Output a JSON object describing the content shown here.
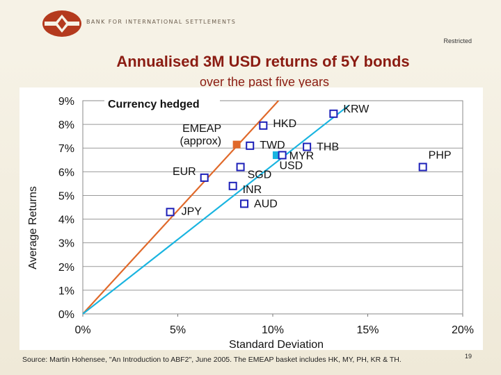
{
  "header": {
    "org_name": "BANK FOR INTERNATIONAL SETTLEMENTS",
    "restricted": "Restricted",
    "title": "Annualised 3M USD returns of 5Y bonds",
    "subtitle": "over the past five years"
  },
  "footer": {
    "source": "Source: Martin Hohensee, \"An Introduction to ABF2\", June 2005. The EMEAP basket includes HK, MY, PH, KR & TH.",
    "page_number": "19"
  },
  "colors": {
    "orange": "#e0692a",
    "cyan": "#19b4e0",
    "marker": "#1c1fb8",
    "title": "#8b1c12"
  },
  "chart_data": {
    "type": "scatter",
    "title": "Currency hedged",
    "xlabel": "Standard Deviation",
    "ylabel": "Average Returns",
    "xlim": [
      0,
      20
    ],
    "ylim": [
      0,
      9
    ],
    "xticks": [
      "0%",
      "5%",
      "10%",
      "15%",
      "20%"
    ],
    "yticks": [
      "0%",
      "1%",
      "2%",
      "3%",
      "4%",
      "5%",
      "6%",
      "7%",
      "8%",
      "9%"
    ],
    "grid": true,
    "lines": [
      {
        "name": "EMEAP line",
        "color": "#e0692a",
        "x": [
          0,
          10.3
        ],
        "y": [
          0,
          9
        ]
      },
      {
        "name": "USD line",
        "color": "#19b4e0",
        "x": [
          0,
          14.0
        ],
        "y": [
          0,
          8.8
        ]
      }
    ],
    "points": [
      {
        "label": "KRW",
        "x": 13.2,
        "y": 8.45,
        "style": "hollow"
      },
      {
        "label": "HKD",
        "x": 9.5,
        "y": 7.95,
        "style": "hollow"
      },
      {
        "label": "EMEAP\n(approx)",
        "x": 8.1,
        "y": 7.15,
        "style": "orange"
      },
      {
        "label": "TWD",
        "x": 8.8,
        "y": 7.1,
        "style": "hollow"
      },
      {
        "label": "THB",
        "x": 11.8,
        "y": 7.05,
        "style": "hollow"
      },
      {
        "label": "USD",
        "x": 10.2,
        "y": 6.7,
        "style": "cyan"
      },
      {
        "label": "MYR",
        "x": 10.5,
        "y": 6.7,
        "style": "hollow"
      },
      {
        "label": "PHP",
        "x": 17.9,
        "y": 6.2,
        "style": "hollow"
      },
      {
        "label": "SGD",
        "x": 8.3,
        "y": 6.2,
        "style": "hollow"
      },
      {
        "label": "EUR",
        "x": 6.4,
        "y": 5.75,
        "style": "hollow"
      },
      {
        "label": "INR",
        "x": 7.9,
        "y": 5.4,
        "style": "hollow"
      },
      {
        "label": "AUD",
        "x": 8.5,
        "y": 4.65,
        "style": "hollow"
      },
      {
        "label": "JPY",
        "x": 4.6,
        "y": 4.3,
        "style": "hollow"
      }
    ]
  }
}
